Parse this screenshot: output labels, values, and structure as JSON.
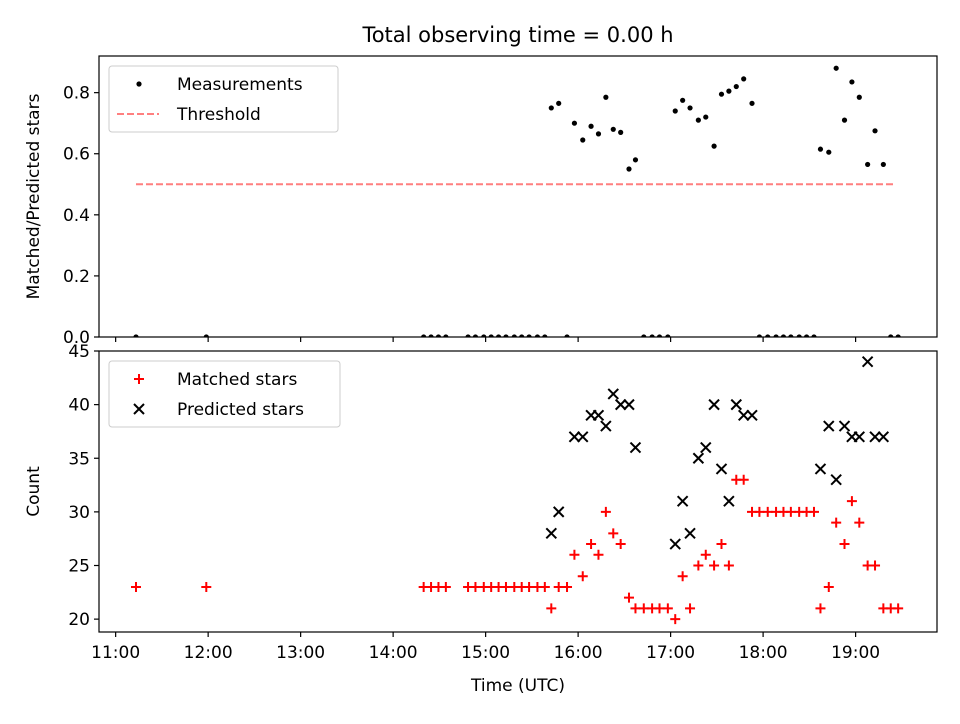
{
  "title": "Total observing time = 0.00 h",
  "chart_data": [
    {
      "type": "scatter",
      "ylabel": "Matched/Predicted stars",
      "ylim": [
        0,
        0.92
      ],
      "xlim": [
        10.82,
        19.88
      ],
      "yticks": [
        0.0,
        0.2,
        0.4,
        0.6,
        0.8
      ],
      "ytick_labels": [
        "0.0",
        "0.2",
        "0.4",
        "0.6",
        "0.8"
      ],
      "legend_placement": "upper-left",
      "series": [
        {
          "name": "Measurements",
          "marker": "dot",
          "color": "#000000",
          "x": [
            11.22,
            11.98,
            14.33,
            14.41,
            14.49,
            14.57,
            14.81,
            14.89,
            14.98,
            15.06,
            15.14,
            15.22,
            15.31,
            15.39,
            15.47,
            15.56,
            15.64,
            15.71,
            15.79,
            15.88,
            15.96,
            16.05,
            16.14,
            16.22,
            16.3,
            16.38,
            16.46,
            16.55,
            16.62,
            16.71,
            16.8,
            16.88,
            16.97,
            17.05,
            17.13,
            17.21,
            17.3,
            17.38,
            17.47,
            17.55,
            17.63,
            17.71,
            17.79,
            17.88,
            17.96,
            18.05,
            18.14,
            18.22,
            18.3,
            18.39,
            18.47,
            18.55,
            18.62,
            18.71,
            18.79,
            18.88,
            18.96,
            19.04,
            19.13,
            19.21,
            19.3,
            19.38,
            19.46
          ],
          "y": [
            0,
            0,
            0,
            0,
            0,
            0,
            0,
            0,
            0,
            0,
            0,
            0,
            0,
            0,
            0,
            0,
            0,
            0.75,
            0.765,
            0,
            0.7,
            0.645,
            0.69,
            0.665,
            0.785,
            0.68,
            0.67,
            0.55,
            0.58,
            0,
            0,
            0,
            0,
            0.74,
            0.775,
            0.75,
            0.71,
            0.72,
            0.625,
            0.795,
            0.805,
            0.82,
            0.845,
            0.765,
            0,
            0,
            0,
            0,
            0,
            0,
            0,
            0,
            0.615,
            0.605,
            0.88,
            0.71,
            0.835,
            0.785,
            0.565,
            0.675,
            0.565,
            0,
            0
          ]
        },
        {
          "name": "Threshold",
          "marker": "dashed-line",
          "color": "#ff7f7f",
          "x": [
            11.22,
            19.42
          ],
          "y": [
            0.5,
            0.5
          ]
        }
      ]
    },
    {
      "type": "scatter",
      "ylabel": "Count",
      "xlabel": "Time (UTC)",
      "ylim": [
        18.8,
        45
      ],
      "xlim": [
        10.82,
        19.88
      ],
      "yticks": [
        20,
        25,
        30,
        35,
        40,
        45
      ],
      "ytick_labels": [
        "20",
        "25",
        "30",
        "35",
        "40",
        "45"
      ],
      "xticks": [
        11,
        12,
        13,
        14,
        15,
        16,
        17,
        18,
        19
      ],
      "xtick_labels": [
        "11:00",
        "12:00",
        "13:00",
        "14:00",
        "15:00",
        "16:00",
        "17:00",
        "18:00",
        "19:00"
      ],
      "legend_placement": "upper-left",
      "series": [
        {
          "name": "Matched stars",
          "marker": "plus",
          "color": "#ff0000",
          "x": [
            11.22,
            11.98,
            14.33,
            14.41,
            14.49,
            14.57,
            14.81,
            14.89,
            14.98,
            15.06,
            15.14,
            15.22,
            15.31,
            15.39,
            15.47,
            15.56,
            15.64,
            15.71,
            15.79,
            15.88,
            15.96,
            16.05,
            16.14,
            16.22,
            16.3,
            16.38,
            16.46,
            16.55,
            16.62,
            16.71,
            16.8,
            16.88,
            16.97,
            17.05,
            17.13,
            17.21,
            17.3,
            17.38,
            17.47,
            17.55,
            17.63,
            17.71,
            17.79,
            17.88,
            17.96,
            18.05,
            18.14,
            18.22,
            18.3,
            18.39,
            18.47,
            18.55,
            18.62,
            18.71,
            18.79,
            18.88,
            18.96,
            19.04,
            19.13,
            19.21,
            19.3,
            19.38,
            19.46
          ],
          "y": [
            23,
            23,
            23,
            23,
            23,
            23,
            23,
            23,
            23,
            23,
            23,
            23,
            23,
            23,
            23,
            23,
            23,
            21,
            23,
            23,
            26,
            24,
            27,
            26,
            30,
            28,
            27,
            22,
            21,
            21,
            21,
            21,
            21,
            20,
            24,
            21,
            25,
            26,
            25,
            27,
            25,
            33,
            33,
            30,
            30,
            30,
            30,
            30,
            30,
            30,
            30,
            30,
            21,
            23,
            29,
            27,
            31,
            29,
            25,
            25,
            21,
            21,
            21
          ]
        },
        {
          "name": "Predicted stars",
          "marker": "x",
          "color": "#000000",
          "x": [
            15.71,
            15.79,
            15.96,
            16.05,
            16.14,
            16.22,
            16.3,
            16.38,
            16.46,
            16.55,
            16.62,
            17.05,
            17.13,
            17.21,
            17.3,
            17.38,
            17.47,
            17.55,
            17.63,
            17.71,
            17.79,
            17.88,
            18.62,
            18.71,
            18.79,
            18.88,
            18.96,
            19.04,
            19.13,
            19.21,
            19.3
          ],
          "y": [
            28,
            30,
            37,
            37,
            39,
            39,
            38,
            41,
            40,
            40,
            36,
            27,
            31,
            28,
            35,
            36,
            40,
            34,
            31,
            40,
            39,
            39,
            34,
            38,
            33,
            38,
            37,
            37,
            44,
            37,
            37
          ]
        }
      ]
    }
  ]
}
